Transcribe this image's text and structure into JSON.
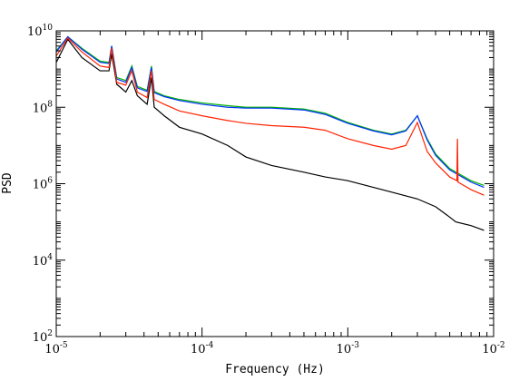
{
  "chart_data": {
    "type": "line",
    "title": "",
    "xlabel": "Frequency (Hz)",
    "ylabel": "PSD",
    "xscale": "log",
    "yscale": "log",
    "xlim": [
      1e-05,
      0.01
    ],
    "ylim": [
      100,
      10000000000.0
    ],
    "grid": false,
    "legend": "none",
    "x_ticks": [
      {
        "value": 1e-05,
        "base": "10",
        "exp": "-5"
      },
      {
        "value": 0.0001,
        "base": "10",
        "exp": "-4"
      },
      {
        "value": 0.001,
        "base": "10",
        "exp": "-3"
      },
      {
        "value": 0.01,
        "base": "10",
        "exp": "-2"
      }
    ],
    "y_ticks": [
      {
        "value": 100,
        "base": "10",
        "exp": "2"
      },
      {
        "value": 10000,
        "base": "10",
        "exp": "4"
      },
      {
        "value": 1000000,
        "base": "10",
        "exp": "6"
      },
      {
        "value": 100000000,
        "base": "10",
        "exp": "8"
      },
      {
        "value": 10000000000,
        "base": "10",
        "exp": "10"
      }
    ],
    "series": [
      {
        "color": "#000000",
        "x": [
          1e-05,
          1.2e-05,
          1.5e-05,
          2e-05,
          2.3e-05,
          2.4e-05,
          2.6e-05,
          3e-05,
          3.3e-05,
          3.6e-05,
          4.2e-05,
          4.5e-05,
          4.7e-05,
          5.5e-05,
          7e-05,
          0.0001,
          0.00015,
          0.0002,
          0.0003,
          0.0005,
          0.0007,
          0.001,
          0.0015,
          0.002,
          0.003,
          0.004,
          0.0048,
          0.0055,
          0.007,
          0.0086
        ],
        "y": [
          1500000000.0,
          6000000000.0,
          2000000000.0,
          900000000.0,
          900000000.0,
          2500000000.0,
          400000000.0,
          250000000.0,
          500000000.0,
          200000000.0,
          120000000.0,
          600000000.0,
          100000000.0,
          60000000.0,
          30000000.0,
          20000000.0,
          10000000.0,
          5000000.0,
          3000000.0,
          2000000.0,
          1500000.0,
          1200000.0,
          800000.0,
          600000.0,
          400000.0,
          250000.0,
          150000.0,
          100000.0,
          80000.0,
          60000.0
        ]
      },
      {
        "color": "#00b000",
        "x": [
          1e-05,
          1.2e-05,
          1.5e-05,
          2e-05,
          2.3e-05,
          2.4e-05,
          2.6e-05,
          3e-05,
          3.3e-05,
          3.6e-05,
          4.2e-05,
          4.5e-05,
          4.7e-05,
          5.5e-05,
          7e-05,
          0.0001,
          0.00015,
          0.0002,
          0.0003,
          0.0005,
          0.0007,
          0.001,
          0.0015,
          0.002,
          0.0025,
          0.003,
          0.0035,
          0.004,
          0.005,
          0.007,
          0.0086
        ],
        "y": [
          3000000000.0,
          7000000000.0,
          3500000000.0,
          1600000000.0,
          1500000000.0,
          4000000000.0,
          600000000.0,
          500000000.0,
          1200000000.0,
          350000000.0,
          280000000.0,
          1200000000.0,
          260000000.0,
          200000000.0,
          160000000.0,
          130000000.0,
          110000000.0,
          100000000.0,
          100000000.0,
          90000000.0,
          70000000.0,
          40000000.0,
          25000000.0,
          20000000.0,
          25000000.0,
          60000000.0,
          15000000.0,
          6000000.0,
          2500000.0,
          1200000.0,
          900000.0
        ]
      },
      {
        "color": "#0033ff",
        "x": [
          1e-05,
          1.2e-05,
          1.5e-05,
          2e-05,
          2.3e-05,
          2.4e-05,
          2.6e-05,
          3e-05,
          3.3e-05,
          3.6e-05,
          4.2e-05,
          4.5e-05,
          4.7e-05,
          5.5e-05,
          7e-05,
          0.0001,
          0.00015,
          0.0002,
          0.0003,
          0.0005,
          0.0007,
          0.001,
          0.0015,
          0.002,
          0.0025,
          0.003,
          0.0035,
          0.004,
          0.005,
          0.007,
          0.0086
        ],
        "y": [
          2800000000.0,
          7000000000.0,
          3300000000.0,
          1500000000.0,
          1400000000.0,
          4000000000.0,
          550000000.0,
          450000000.0,
          1100000000.0,
          320000000.0,
          260000000.0,
          1100000000.0,
          240000000.0,
          190000000.0,
          150000000.0,
          120000000.0,
          100000000.0,
          95000000.0,
          95000000.0,
          85000000.0,
          65000000.0,
          38000000.0,
          24000000.0,
          19000000.0,
          24000000.0,
          60000000.0,
          14000000.0,
          5500000.0,
          2300000.0,
          1100000.0,
          800000.0
        ]
      },
      {
        "color": "#ff2200",
        "x": [
          1e-05,
          1.2e-05,
          1.5e-05,
          2e-05,
          2.3e-05,
          2.4e-05,
          2.6e-05,
          3e-05,
          3.3e-05,
          3.6e-05,
          4.2e-05,
          4.5e-05,
          4.7e-05,
          5.5e-05,
          7e-05,
          0.0001,
          0.00015,
          0.0002,
          0.0003,
          0.0005,
          0.0007,
          0.001,
          0.0015,
          0.002,
          0.0025,
          0.003,
          0.0035,
          0.004,
          0.005,
          0.0056,
          0.00565,
          0.0057,
          0.007,
          0.0086
        ],
        "y": [
          2200000000.0,
          6500000000.0,
          2800000000.0,
          1200000000.0,
          1100000000.0,
          3500000000.0,
          450000000.0,
          380000000.0,
          900000000.0,
          250000000.0,
          180000000.0,
          900000000.0,
          160000000.0,
          120000000.0,
          80000000.0,
          60000000.0,
          45000000.0,
          38000000.0,
          33000000.0,
          30000000.0,
          25000000.0,
          15000000.0,
          10000000.0,
          8000000.0,
          10000000.0,
          40000000.0,
          7000000.0,
          3500000.0,
          1500000.0,
          1200000.0,
          15000000.0,
          1100000.0,
          700000.0,
          500000.0
        ]
      }
    ]
  }
}
